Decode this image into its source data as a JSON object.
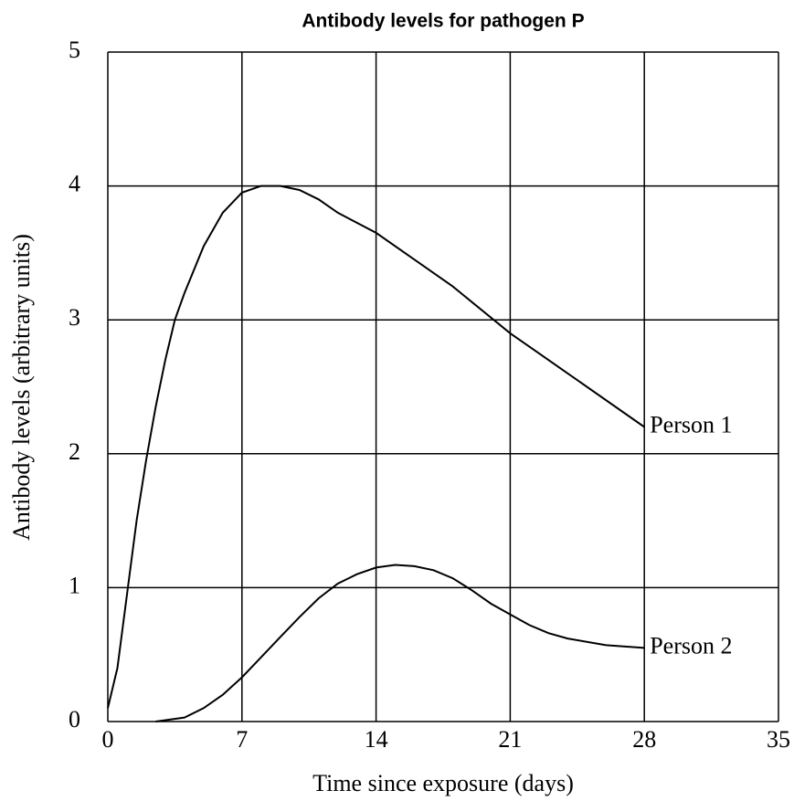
{
  "chart_data": {
    "type": "line",
    "title": "Antibody levels for pathogen P",
    "x_label": "Time since exposure (days)",
    "y_label": "Antibody levels (arbitrary units)",
    "xlim": [
      0,
      35
    ],
    "xticks": [
      0,
      7,
      14,
      21,
      28,
      35
    ],
    "ylim": [
      0,
      5
    ],
    "yticks": [
      0,
      1,
      2,
      3,
      4,
      5
    ],
    "grid": true,
    "series": [
      {
        "name": "Person 1",
        "color": "#000000",
        "x": [
          0,
          0.5,
          1,
          1.5,
          2,
          2.5,
          3,
          3.5,
          4,
          5,
          6,
          7,
          8,
          9,
          10,
          11,
          12,
          14,
          16,
          18,
          21,
          24,
          28
        ],
        "values": [
          0.1,
          0.4,
          0.95,
          1.5,
          1.95,
          2.35,
          2.7,
          3.0,
          3.2,
          3.55,
          3.8,
          3.95,
          4.0,
          4.0,
          3.97,
          3.9,
          3.8,
          3.65,
          3.45,
          3.25,
          2.9,
          2.6,
          2.2
        ]
      },
      {
        "name": "Person 2",
        "color": "#000000",
        "x": [
          2.5,
          4,
          5,
          6,
          7,
          8,
          9,
          10,
          11,
          12,
          13,
          14,
          15,
          16,
          17,
          18,
          19,
          20,
          21,
          22,
          23,
          24,
          26,
          28
        ],
        "values": [
          0,
          0.03,
          0.1,
          0.2,
          0.33,
          0.48,
          0.63,
          0.78,
          0.92,
          1.03,
          1.1,
          1.15,
          1.17,
          1.16,
          1.13,
          1.07,
          0.98,
          0.88,
          0.8,
          0.72,
          0.66,
          0.62,
          0.57,
          0.55
        ]
      }
    ]
  }
}
